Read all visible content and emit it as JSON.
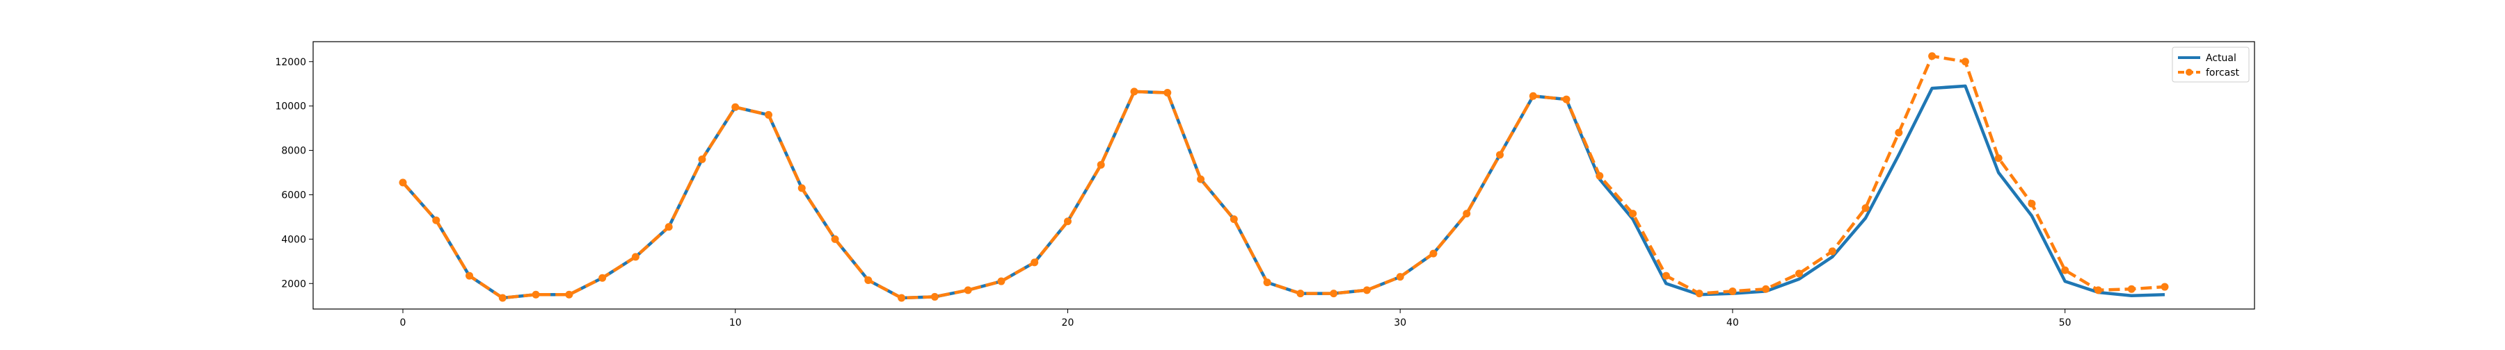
{
  "chart_data": {
    "type": "line",
    "title": "",
    "xlabel": "",
    "ylabel": "",
    "xlim": [
      -2.7,
      55.7
    ],
    "ylim": [
      850,
      12900
    ],
    "grid": false,
    "legend_position": "top-right",
    "xticks": [
      0,
      10,
      20,
      30,
      40,
      50
    ],
    "yticks": [
      2000,
      4000,
      6000,
      8000,
      10000,
      12000
    ],
    "x": [
      0,
      1,
      2,
      3,
      4,
      5,
      6,
      7,
      8,
      9,
      10,
      11,
      12,
      13,
      14,
      15,
      16,
      17,
      18,
      19,
      20,
      21,
      22,
      23,
      24,
      25,
      26,
      27,
      28,
      29,
      30,
      31,
      32,
      33,
      34,
      35,
      36,
      37,
      38,
      39,
      40,
      41,
      42,
      43,
      44,
      45,
      46,
      47,
      48,
      49,
      50,
      51,
      52,
      53
    ],
    "series": [
      {
        "name": "Actual",
        "color": "#1f77b4",
        "style": "solid",
        "marker": "none",
        "values": [
          6550,
          4850,
          2350,
          1350,
          1500,
          1500,
          2250,
          3200,
          4550,
          7600,
          9950,
          9600,
          6300,
          4000,
          2150,
          1350,
          1400,
          1700,
          2100,
          2950,
          4800,
          7350,
          10650,
          10600,
          6700,
          4900,
          2050,
          1550,
          1550,
          1700,
          2300,
          3350,
          5150,
          7800,
          10450,
          10300,
          6700,
          4900,
          2000,
          1500,
          1550,
          1650,
          2200,
          3200,
          4950,
          7800,
          10800,
          10900,
          7000,
          5050,
          2100,
          1600,
          1450,
          1500
        ]
      },
      {
        "name": "forcast",
        "color": "#ff7f0e",
        "style": "dashed",
        "marker": "circle",
        "values": [
          6550,
          4850,
          2350,
          1350,
          1500,
          1500,
          2250,
          3200,
          4550,
          7600,
          9950,
          9600,
          6300,
          4000,
          2150,
          1350,
          1400,
          1700,
          2100,
          2950,
          4800,
          7350,
          10650,
          10600,
          6700,
          4900,
          2050,
          1550,
          1550,
          1700,
          2300,
          3350,
          5150,
          7800,
          10450,
          10300,
          6850,
          5150,
          2350,
          1550,
          1650,
          1750,
          2450,
          3450,
          5400,
          8800,
          12250,
          12000,
          7650,
          5600,
          2600,
          1700,
          1750,
          1850
        ]
      }
    ]
  }
}
